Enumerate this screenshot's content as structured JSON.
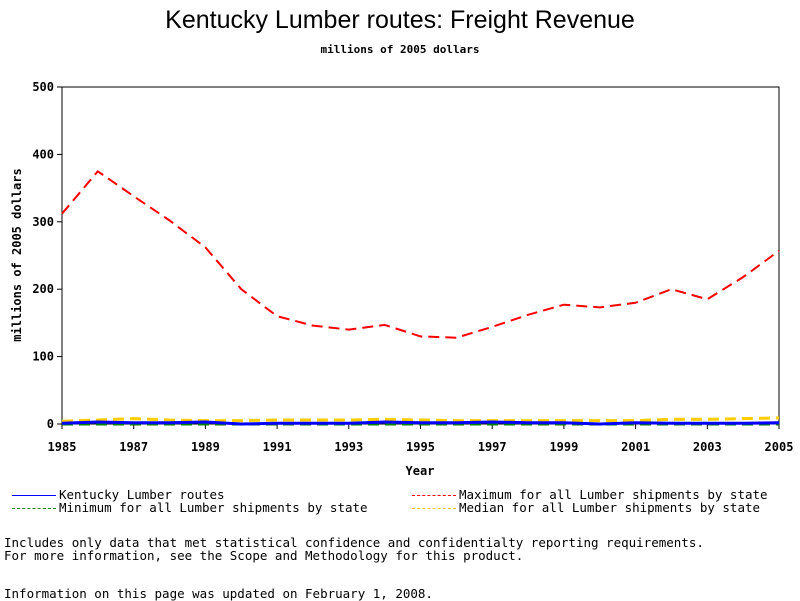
{
  "title": "Kentucky Lumber routes: Freight Revenue",
  "subtitle": "millions of 2005 dollars",
  "notes": {
    "line1": "Includes only data that met statistical confidence and confidentialty reporting requirements.",
    "line2": "For more information, see the Scope and Methodology for this product.",
    "updated": "Information on this page was updated on February 1, 2008."
  },
  "chart_data": {
    "type": "line",
    "title": "Kentucky Lumber routes: Freight Revenue",
    "subtitle": "millions of 2005 dollars",
    "xlabel": "Year",
    "ylabel": "millions of 2005 dollars",
    "xlim": [
      1985,
      2005
    ],
    "ylim": [
      0,
      500
    ],
    "x_ticks": [
      "1985",
      "1987",
      "1989",
      "1991",
      "1993",
      "1995",
      "1997",
      "1999",
      "2001",
      "2003",
      "2005"
    ],
    "y_ticks": [
      "0",
      "100",
      "200",
      "300",
      "400",
      "500"
    ],
    "grid": false,
    "x": [
      1985,
      1986,
      1987,
      1988,
      1989,
      1990,
      1991,
      1992,
      1993,
      1994,
      1995,
      1996,
      1997,
      1998,
      1999,
      2000,
      2001,
      2002,
      2003,
      2004,
      2005
    ],
    "series": [
      {
        "name": "Kentucky Lumber routes",
        "color": "#0000ff",
        "dash": "solid",
        "values": [
          1,
          3,
          2,
          2,
          3,
          0,
          1,
          1,
          1,
          3,
          2,
          2,
          3,
          2,
          2,
          0,
          2,
          1,
          1,
          1,
          2
        ]
      },
      {
        "name": "Maximum for all Lumber shipments by state",
        "color": "#ff0000",
        "dash": "dashed",
        "values": [
          312,
          375,
          338,
          302,
          262,
          200,
          160,
          146,
          140,
          147,
          130,
          128,
          144,
          162,
          177,
          173,
          180,
          200,
          185,
          218,
          257
        ]
      },
      {
        "name": "Minimum for all Lumber shipments by state",
        "color": "#008000",
        "dash": "dashed",
        "values": [
          0,
          0,
          0,
          0,
          0,
          0,
          0,
          0,
          0,
          0,
          0,
          0,
          0,
          0,
          0,
          0,
          0,
          0,
          0,
          0,
          0
        ]
      },
      {
        "name": "Median for all Lumber shipments by state",
        "color": "#ffcc00",
        "dash": "dashed",
        "values": [
          4,
          6,
          8,
          6,
          5,
          5,
          6,
          6,
          6,
          7,
          6,
          5,
          5,
          5,
          5,
          5,
          5,
          7,
          7,
          8,
          9
        ]
      }
    ],
    "legend_position": "bottom"
  }
}
